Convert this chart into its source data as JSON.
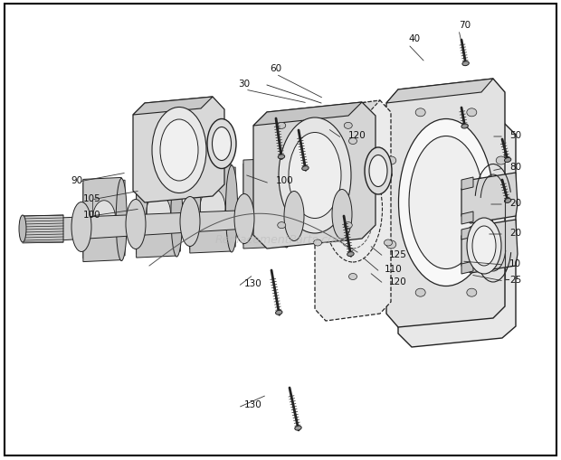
{
  "bg_color": "#ffffff",
  "border_color": "#000000",
  "text_color": "#000000",
  "watermark": "ReplacementParts.com",
  "watermark_color": "#bbbbbb",
  "figsize": [
    6.2,
    5.1
  ],
  "dpi": 100,
  "line_color": "#222222",
  "fill_light": "#f0f0f0",
  "fill_mid": "#d8d8d8",
  "fill_dark": "#aaaaaa"
}
